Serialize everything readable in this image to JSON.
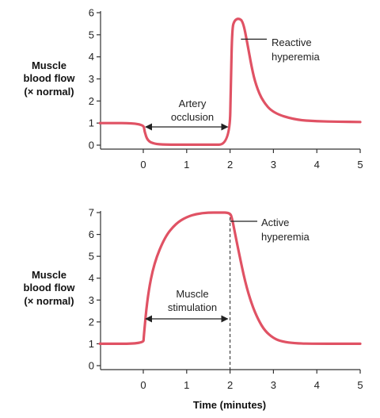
{
  "colors": {
    "curve": "#e05264",
    "axis": "#333333",
    "text": "#222222"
  },
  "chart_data": [
    {
      "type": "line",
      "title": "",
      "ylabel_lines": [
        "Muscle",
        "blood flow",
        "(× normal)"
      ],
      "xlabel": "",
      "xlim": [
        -1,
        5
      ],
      "ylim": [
        0,
        6
      ],
      "xticks": [
        0,
        1,
        2,
        3,
        4,
        5
      ],
      "yticks": [
        0,
        1,
        2,
        3,
        4,
        5,
        6
      ],
      "x_tick_labels": [
        "0",
        "1",
        "2",
        "3",
        "4",
        "5"
      ],
      "y_tick_labels": [
        "0",
        "1",
        "2",
        "3",
        "4",
        "5",
        "6"
      ],
      "series": [
        {
          "x": [
            -1,
            0,
            0.03,
            0.1,
            0.25,
            0.5,
            1.0,
            1.5,
            1.99,
            2.02,
            2.05,
            2.1,
            2.2,
            2.3,
            2.4,
            2.5,
            2.6,
            2.75,
            3.0,
            3.5,
            4.0,
            4.5,
            5.0
          ],
          "y": [
            1,
            1,
            0.6,
            0.2,
            0.06,
            0.02,
            0.02,
            0.02,
            0.02,
            3.0,
            5.3,
            5.65,
            5.75,
            5.6,
            4.6,
            3.5,
            2.7,
            2.0,
            1.45,
            1.15,
            1.08,
            1.06,
            1.05
          ]
        }
      ],
      "annotations": [
        {
          "lines": [
            "Artery",
            "occlusion"
          ],
          "arrow_span": [
            0,
            2
          ]
        },
        {
          "lines": [
            "Reactive",
            "hyperemia"
          ],
          "leader_to": [
            2.25,
            4.8
          ]
        }
      ]
    },
    {
      "type": "line",
      "title": "",
      "ylabel_lines": [
        "Muscle",
        "blood flow",
        "(× normal)"
      ],
      "xlabel": "Time (minutes)",
      "xlim": [
        -1,
        5
      ],
      "ylim": [
        0,
        7
      ],
      "xticks": [
        0,
        1,
        2,
        3,
        4,
        5
      ],
      "yticks": [
        0,
        1,
        2,
        3,
        4,
        5,
        6,
        7
      ],
      "x_tick_labels": [
        "0",
        "1",
        "2",
        "3",
        "4",
        "5"
      ],
      "y_tick_labels": [
        "0",
        "1",
        "2",
        "3",
        "4",
        "5",
        "6",
        "7"
      ],
      "series": [
        {
          "x": [
            -1,
            0,
            0.01,
            0.1,
            0.25,
            0.5,
            0.75,
            1.0,
            1.25,
            1.5,
            1.75,
            2.0,
            2.05,
            2.1,
            2.2,
            2.35,
            2.5,
            2.65,
            2.8,
            3.0,
            3.2,
            3.5,
            4.0,
            5.0
          ],
          "y": [
            1,
            1,
            1.3,
            3.2,
            4.7,
            5.9,
            6.5,
            6.8,
            6.95,
            7.0,
            7.0,
            7.0,
            6.7,
            6.2,
            5.2,
            3.8,
            2.8,
            2.1,
            1.6,
            1.25,
            1.1,
            1.02,
            1.0,
            1.0
          ]
        }
      ],
      "annotations": [
        {
          "lines": [
            "Muscle",
            "stimulation"
          ],
          "arrow_span": [
            0,
            2
          ]
        },
        {
          "lines": [
            "Active",
            "hyperemia"
          ],
          "leader_to": [
            2.0,
            6.6
          ]
        }
      ]
    }
  ]
}
